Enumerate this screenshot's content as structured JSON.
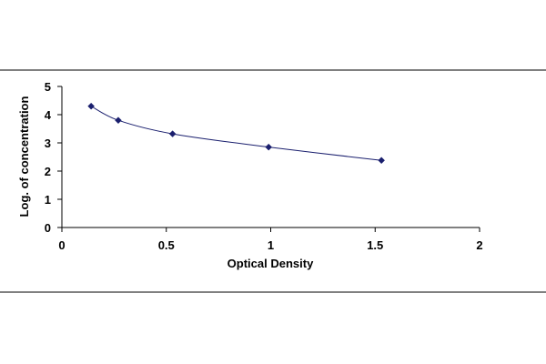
{
  "chart_data": {
    "type": "scatter",
    "title": "",
    "xlabel": "Optical Density",
    "ylabel": "Log. of concentration",
    "xlim": [
      0,
      2
    ],
    "ylim": [
      0,
      5
    ],
    "x_ticks": [
      0,
      0.5,
      1,
      1.5,
      2
    ],
    "x_tick_labels": [
      "0",
      "0.5",
      "1",
      "1.5",
      "2"
    ],
    "y_ticks": [
      0,
      1,
      2,
      3,
      4,
      5
    ],
    "y_tick_labels": [
      "0",
      "1",
      "2",
      "3",
      "4",
      "5"
    ],
    "grid": false,
    "legend": "none",
    "series": [
      {
        "x": [
          0.14,
          0.27,
          0.53,
          0.99,
          1.53
        ],
        "y": [
          4.3,
          3.8,
          3.32,
          2.85,
          2.38
        ],
        "marker": "diamond",
        "color": "#1a1f6e",
        "trendline": "smooth"
      }
    ]
  }
}
